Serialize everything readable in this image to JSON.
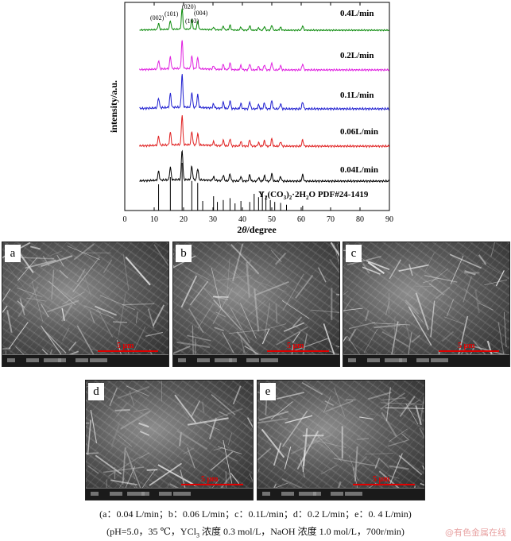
{
  "chart_data": {
    "type": "line",
    "xlabel_prefix": "2",
    "xlabel_theta": "θ",
    "xlabel_suffix": "/degree",
    "ylabel": "intensity/a.u.",
    "xlim": [
      0,
      90
    ],
    "x_ticks": [
      0,
      10,
      20,
      30,
      40,
      50,
      60,
      70,
      80,
      90
    ],
    "series": [
      {
        "name": "0.04L/min",
        "color": "#000000"
      },
      {
        "name": "0.06L/min",
        "color": "#e02020"
      },
      {
        "name": "0.1L/min",
        "color": "#1f1fd0"
      },
      {
        "name": "0.2L/min",
        "color": "#e020e0"
      },
      {
        "name": "0.4L/min",
        "color": "#0a8a0a"
      }
    ],
    "peaks": [
      {
        "label": "(002)",
        "x": 11.5,
        "h": 0.3
      },
      {
        "label": "(101)",
        "x": 15.5,
        "h": 0.42
      },
      {
        "label": "(020)",
        "x": 19.5,
        "h": 1.0
      },
      {
        "label": "(103)",
        "x": 22.8,
        "h": 0.45
      },
      {
        "label": "(004)",
        "x": 24.8,
        "h": 0.38
      }
    ],
    "minor_peaks": [
      30.2,
      33.5,
      35.8,
      39.5,
      42.5,
      45.5,
      47.5,
      50.0,
      53.0,
      60.5
    ],
    "reference_label_main": "Y",
    "reference_sub_1": "2",
    "reference_label_mid": "(CO",
    "reference_sub_2": "3",
    "reference_label_mid2": ")",
    "reference_sub_3": "2",
    "reference_label_end": "·2H",
    "reference_sub_4": "2",
    "reference_label_tail": "O PDF#24-1419",
    "reference_lines": [
      {
        "x": 11.5,
        "h": 0.55
      },
      {
        "x": 15.5,
        "h": 0.7
      },
      {
        "x": 19.5,
        "h": 1.0
      },
      {
        "x": 22.8,
        "h": 0.62
      },
      {
        "x": 24.8,
        "h": 0.58
      },
      {
        "x": 26.5,
        "h": 0.2
      },
      {
        "x": 30.2,
        "h": 0.3
      },
      {
        "x": 31.5,
        "h": 0.18
      },
      {
        "x": 33.5,
        "h": 0.22
      },
      {
        "x": 35.8,
        "h": 0.26
      },
      {
        "x": 37.5,
        "h": 0.15
      },
      {
        "x": 39.5,
        "h": 0.2
      },
      {
        "x": 42.5,
        "h": 0.18
      },
      {
        "x": 44.0,
        "h": 0.35
      },
      {
        "x": 45.5,
        "h": 0.28
      },
      {
        "x": 46.8,
        "h": 0.4
      },
      {
        "x": 48.0,
        "h": 0.3
      },
      {
        "x": 49.5,
        "h": 0.22
      },
      {
        "x": 51.0,
        "h": 0.18
      },
      {
        "x": 53.0,
        "h": 0.16
      },
      {
        "x": 55.0,
        "h": 0.12
      },
      {
        "x": 60.5,
        "h": 0.1
      }
    ]
  },
  "sem": {
    "panels": [
      {
        "letter": "a",
        "scale": "5 μm"
      },
      {
        "letter": "b",
        "scale": "5 μm"
      },
      {
        "letter": "c",
        "scale": "5 μm"
      },
      {
        "letter": "d",
        "scale": "5 μm"
      },
      {
        "letter": "e",
        "scale": "5 μm"
      }
    ]
  },
  "caption": {
    "line1": "(a：0.04 L/min；b：0.06 L/min；c：0.1L/min；d：0.2 L/min；e：0. 4 L/min)",
    "line2_a": "(pH=5.0，35 ℃，YCl",
    "line2_sub": "3",
    "line2_b": " 浓度 0.3 mol/L，NaOH 浓度 1.0 mol/L，700r/min)"
  },
  "watermark": "@有色金属在线"
}
